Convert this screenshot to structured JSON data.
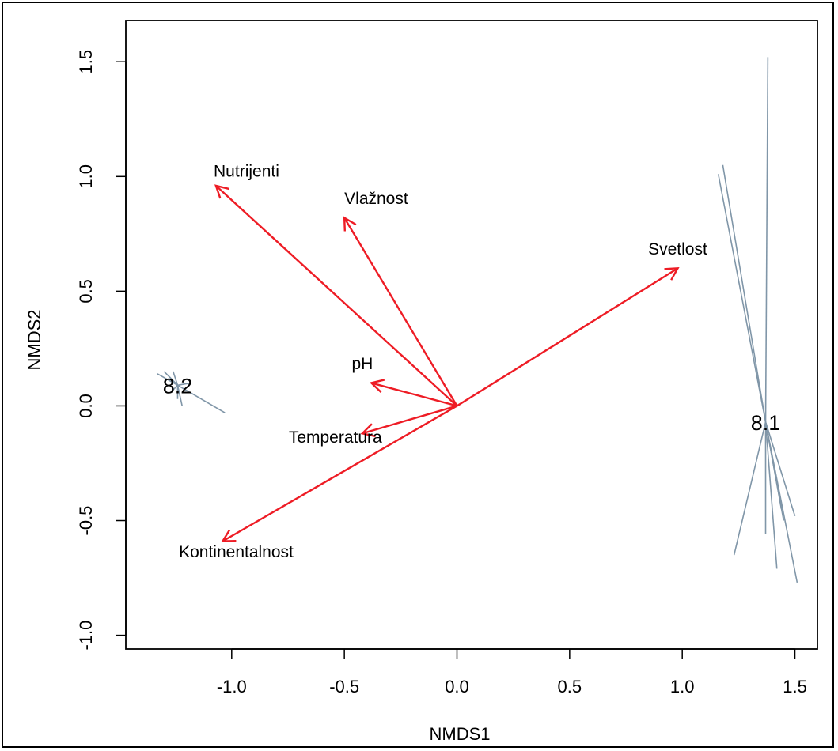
{
  "chart_data": {
    "type": "scatter",
    "subtype": "nmds-ordination-biplot",
    "xlabel": "NMDS1",
    "ylabel": "NMDS2",
    "xlim": [
      -1.47,
      1.6
    ],
    "ylim": [
      -1.06,
      1.68
    ],
    "xticks": [
      "-1.0",
      "-0.5",
      "0.0",
      "0.5",
      "1.0",
      "1.5"
    ],
    "xtick_values": [
      -1.0,
      -0.5,
      0.0,
      0.5,
      1.0,
      1.5
    ],
    "yticks": [
      "-1.0",
      "-0.5",
      "0.0",
      "0.5",
      "1.0",
      "1.5"
    ],
    "ytick_values": [
      -1.0,
      -0.5,
      0.0,
      0.5,
      1.0,
      1.5
    ],
    "grid": false,
    "vector_color": "#ee1c25",
    "spider_color": "#8096a8",
    "vectors": [
      {
        "label": "Nutrijenti",
        "x": -1.07,
        "y": 0.96
      },
      {
        "label": "Vlažnost",
        "x": -0.5,
        "y": 0.82
      },
      {
        "label": "Svetlost",
        "x": 0.98,
        "y": 0.6
      },
      {
        "label": "pH",
        "x": -0.38,
        "y": 0.1
      },
      {
        "label": "Temperatura",
        "x": -0.42,
        "y": -0.12
      },
      {
        "label": "Kontinentalnost",
        "x": -1.04,
        "y": -0.59
      }
    ],
    "groups": [
      {
        "label": "8.2",
        "centroid": [
          -1.24,
          0.09
        ],
        "points": [
          [
            -1.33,
            0.14
          ],
          [
            -1.3,
            0.15
          ],
          [
            -1.28,
            0.13
          ],
          [
            -1.26,
            0.15
          ],
          [
            -1.24,
            0.03
          ],
          [
            -1.22,
            0.0
          ],
          [
            -1.18,
            0.1
          ],
          [
            -1.03,
            -0.03
          ],
          [
            -1.27,
            0.06
          ]
        ]
      },
      {
        "label": "8.1",
        "centroid": [
          1.37,
          -0.07
        ],
        "points": [
          [
            1.38,
            1.52
          ],
          [
            1.18,
            1.05
          ],
          [
            1.16,
            1.01
          ],
          [
            1.37,
            -0.56
          ],
          [
            1.23,
            -0.65
          ],
          [
            1.42,
            -0.71
          ],
          [
            1.45,
            -0.5
          ],
          [
            1.44,
            -0.45
          ],
          [
            1.5,
            -0.48
          ],
          [
            1.51,
            -0.77
          ]
        ]
      }
    ]
  }
}
